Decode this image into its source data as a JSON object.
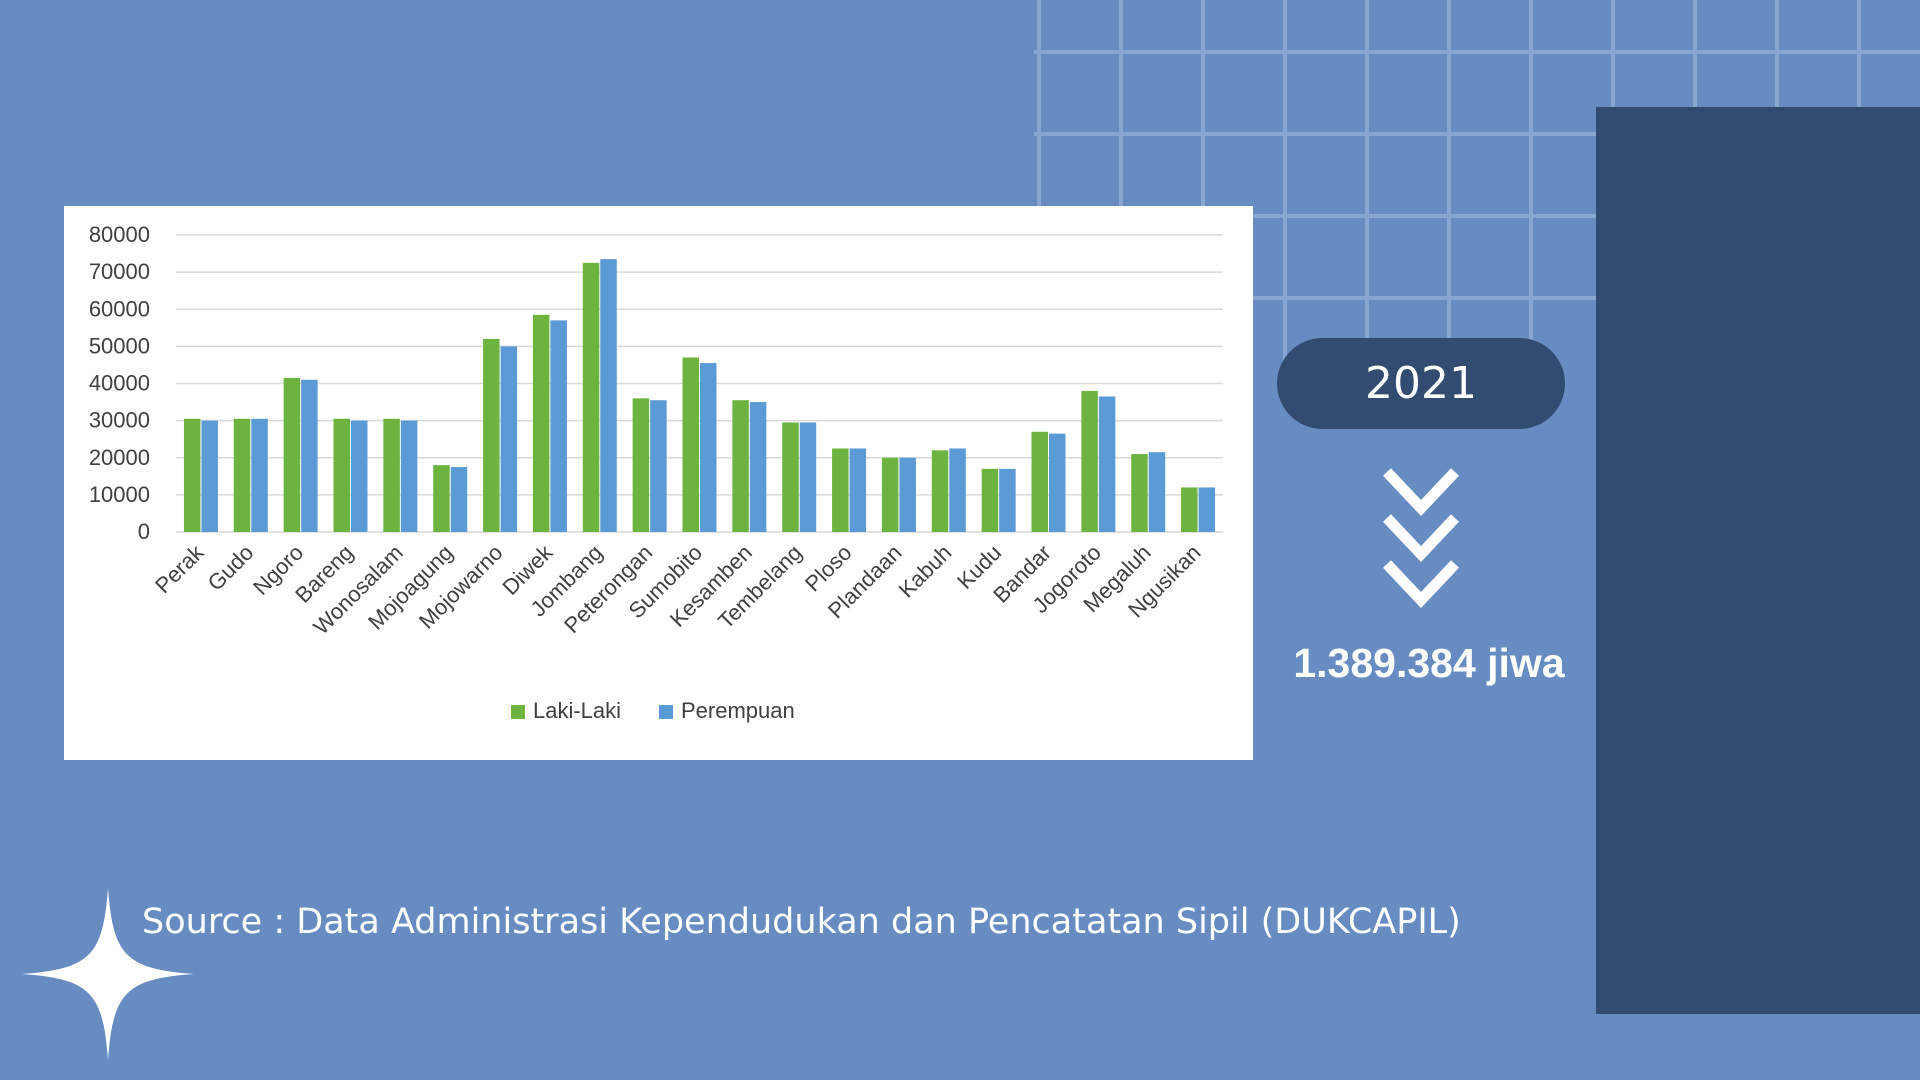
{
  "year": "2021",
  "total_population": "1.389.384 jiwa",
  "source": "Source : Data Administrasi Kependudukan dan Pencatatan Sipil (DUKCAPIL)",
  "icons": {
    "chevrons": "triple-chevron-down-icon",
    "sparkle": "four-point-star-icon"
  },
  "colors": {
    "background": "#678cc1",
    "panel": "#324b70",
    "laki": "#6cb43f",
    "perempuan": "#5b9bd5"
  },
  "chart_data": {
    "type": "bar",
    "ylim": [
      0,
      80000
    ],
    "yticks": [
      0,
      10000,
      20000,
      30000,
      40000,
      50000,
      60000,
      70000,
      80000
    ],
    "grid": true,
    "legend_position": "bottom",
    "categories": [
      "Perak",
      "Gudo",
      "Ngoro",
      "Bareng",
      "Wonosalam",
      "Mojoagung",
      "Mojowarno",
      "Diwek",
      "Jombang",
      "Peterongan",
      "Sumobito",
      "Kesamben",
      "Tembelang",
      "Ploso",
      "Plandaan",
      "Kabuh",
      "Kudu",
      "Bandar",
      "Jogoroto",
      "Megaluh",
      "Ngusikan"
    ],
    "series": [
      {
        "name": "Laki-Laki",
        "color": "#6cb43f",
        "values": [
          30500,
          30500,
          41500,
          30500,
          30500,
          18000,
          52000,
          58500,
          72500,
          36000,
          47000,
          35500,
          29500,
          22500,
          20000,
          22000,
          17000,
          27000,
          38000,
          21000,
          12000
        ]
      },
      {
        "name": "Perempuan",
        "color": "#5b9bd5",
        "values": [
          30000,
          30500,
          41000,
          30000,
          30000,
          17500,
          50000,
          57000,
          73500,
          35500,
          45500,
          35000,
          29500,
          22500,
          20000,
          22500,
          17000,
          26500,
          36500,
          21500,
          12000
        ]
      }
    ]
  }
}
